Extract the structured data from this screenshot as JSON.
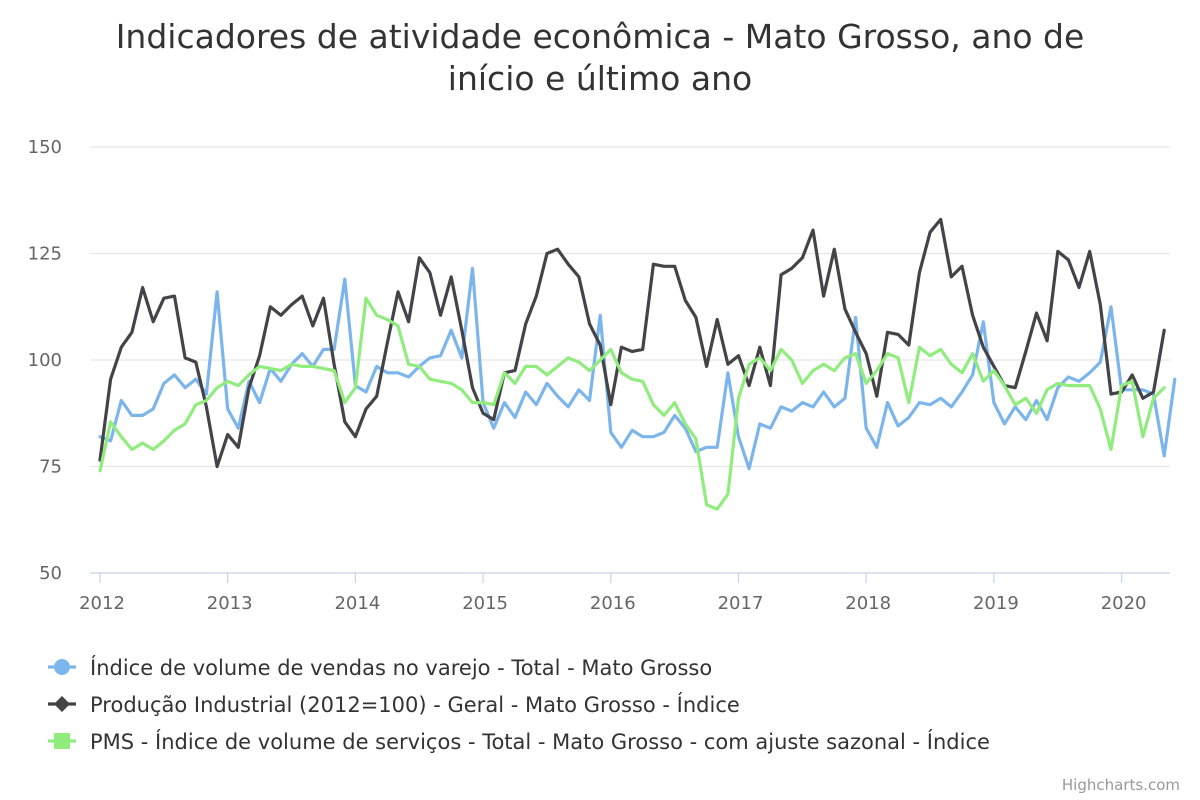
{
  "chart_data": {
    "type": "line",
    "title_lines": [
      "Indicadores de atividade econômica - Mato Grosso, ano de",
      "início e último ano"
    ],
    "xlabel": "",
    "ylabel": "",
    "x_ticks": [
      "2012",
      "2013",
      "2014",
      "2015",
      "2016",
      "2017",
      "2018",
      "2019",
      "2020"
    ],
    "y_ticks": [
      "50",
      "75",
      "100",
      "125",
      "150"
    ],
    "ylim": [
      50,
      150
    ],
    "x_start": "2012-01",
    "x_end": "2020-05",
    "grid": true,
    "legend_position": "bottom",
    "credits": "Highcharts.com",
    "series": [
      {
        "name": "Índice de volume de vendas no varejo - Total - Mato Grosso",
        "color": "#7cb5ec",
        "marker": "circle",
        "values": [
          82,
          81,
          90.5,
          87,
          87,
          88.5,
          94.5,
          96.5,
          93.5,
          95.5,
          92,
          116,
          88.5,
          84,
          95,
          90,
          98,
          95,
          99,
          101.5,
          98.5,
          102.5,
          102.5,
          119,
          94,
          92.5,
          98.5,
          97,
          97,
          96,
          98.5,
          100.5,
          101,
          107,
          100.5,
          121.5,
          90,
          84,
          90,
          86.5,
          92.5,
          89.5,
          94.5,
          91.5,
          89,
          93,
          90.5,
          110.5,
          83,
          79.5,
          83.5,
          82,
          82,
          83,
          87,
          84,
          78.5,
          79.5,
          79.5,
          97,
          82,
          74.5,
          85,
          84,
          89,
          88,
          90,
          89,
          92.5,
          89,
          91,
          110,
          84,
          79.5,
          90,
          84.5,
          86.5,
          90,
          89.5,
          91,
          89,
          92.5,
          96.5,
          109,
          90,
          85,
          89,
          86,
          90.5,
          86,
          93.5,
          96,
          95,
          97,
          99.5,
          112.5,
          93,
          93,
          93,
          92,
          77.5,
          95.5
        ]
      },
      {
        "name": "Produção Industrial (2012=100) - Geral - Mato Grosso - Índice",
        "color": "#434348",
        "marker": "diamond",
        "values": [
          76.5,
          95.5,
          103,
          106.5,
          117,
          109,
          114.5,
          115,
          100.5,
          99.5,
          89,
          75,
          82.5,
          79.5,
          93.5,
          101,
          112.5,
          110.5,
          113,
          115,
          108,
          114.5,
          99,
          85.5,
          82,
          88.5,
          91.5,
          104,
          116,
          109,
          124,
          120.5,
          110.5,
          119.5,
          107,
          93.5,
          87.5,
          86,
          97,
          97.5,
          108.5,
          115,
          125,
          126,
          122.5,
          119.5,
          108.5,
          103.5,
          89.5,
          103,
          102,
          102.5,
          122.5,
          122,
          122,
          114,
          110,
          98.5,
          109.5,
          99,
          101,
          94,
          103,
          94,
          120,
          121.5,
          124,
          130.5,
          115,
          126,
          112,
          106.5,
          101.5,
          91.5,
          106.5,
          106,
          103.5,
          120.5,
          130,
          133,
          119.5,
          122,
          110.5,
          103,
          98.5,
          94,
          93.5,
          102,
          111,
          104.5,
          125.5,
          123.5,
          117,
          125.5,
          113,
          92,
          92.5,
          96.5,
          91,
          92.5,
          107
        ]
      },
      {
        "name": "PMS - Índice de volume de serviços - Total - Mato Grosso - com ajuste sazonal - Índice",
        "color": "#90ed7d",
        "marker": "square",
        "values": [
          74,
          85.5,
          82,
          79,
          80.5,
          79,
          81,
          83.5,
          85,
          89.5,
          90.5,
          93.5,
          95,
          94,
          96.5,
          98.5,
          98,
          97.5,
          99,
          98.5,
          98.5,
          98,
          97.5,
          90,
          93.5,
          114.5,
          110.5,
          109.5,
          108,
          99,
          98.5,
          95.5,
          95,
          94.5,
          93,
          90,
          90,
          89.5,
          97,
          94.5,
          98.5,
          98.5,
          96.5,
          98.5,
          100.5,
          99.5,
          97.5,
          100,
          102.5,
          97,
          95.5,
          95,
          89.5,
          87,
          90,
          85,
          81.5,
          66,
          65,
          68.5,
          91,
          99,
          100.5,
          97.5,
          102.5,
          100,
          94.5,
          97.5,
          99,
          97.5,
          100.5,
          101.5,
          94.5,
          97.5,
          101.5,
          100.5,
          90,
          103,
          101,
          102.5,
          99,
          97,
          101.5,
          95,
          97.5,
          94,
          89.5,
          91,
          87.5,
          93,
          94.5,
          94,
          94,
          94,
          88.5,
          79,
          94,
          95,
          82,
          91,
          93.5
        ]
      }
    ]
  }
}
